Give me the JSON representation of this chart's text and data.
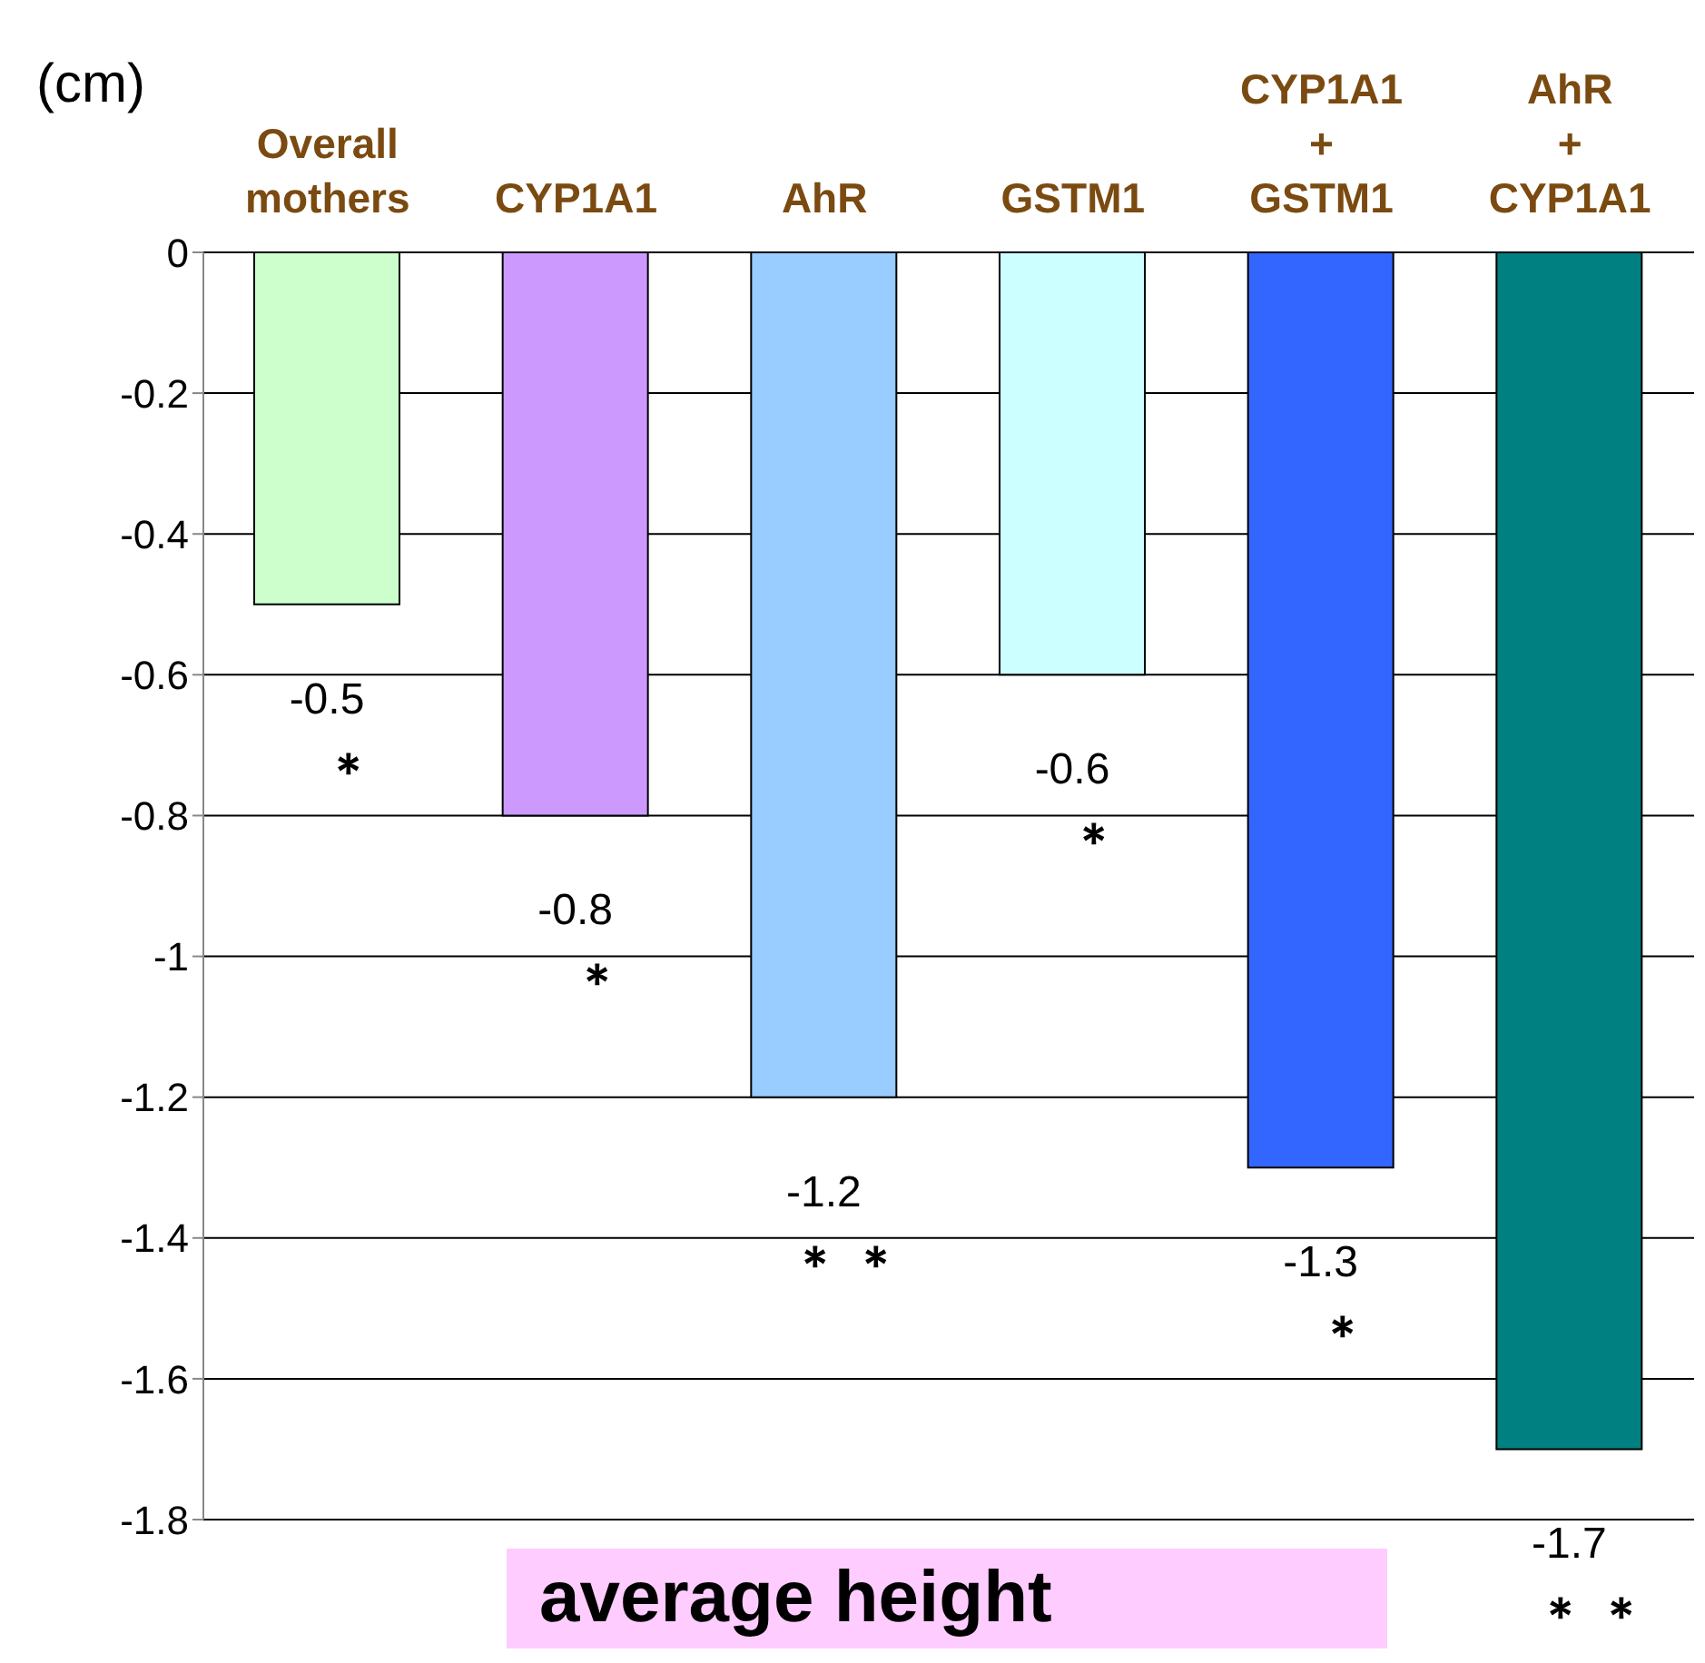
{
  "chart_data": {
    "type": "bar",
    "xlabel": "average height",
    "ylabel": "(cm)",
    "categories": [
      "Overall\nmothers",
      "CYP1A1",
      "AhR",
      "GSTM1",
      "CYP1A1\n+\nGSTM1",
      "AhR\n+\nCYP1A1"
    ],
    "values": [
      -0.5,
      -0.8,
      -1.2,
      -0.6,
      -1.3,
      -1.7
    ],
    "colors": [
      "#ccffcc",
      "#cc99ff",
      "#99ccff",
      "#ccffff",
      "#3366ff",
      "#008080"
    ],
    "ylim": [
      -1.8,
      0
    ],
    "yticks": [
      0,
      -0.2,
      -0.4,
      -0.6,
      -0.8,
      -1,
      -1.2,
      -1.4,
      -1.6,
      -1.8
    ],
    "grid": "y",
    "data_labels": true,
    "annotations": [
      "＊",
      "＊",
      "＊ ＊",
      "＊",
      "＊",
      "＊ ＊"
    ]
  }
}
